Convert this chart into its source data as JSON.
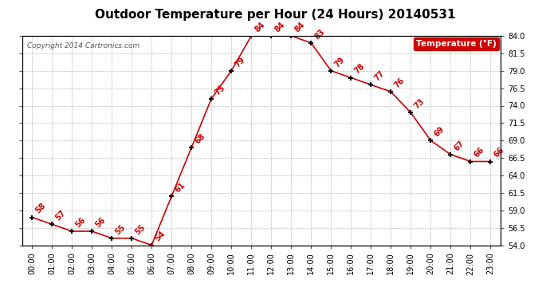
{
  "title": "Outdoor Temperature per Hour (24 Hours) 20140531",
  "copyright_text": "Copyright 2014 Cartronics.com",
  "legend_label": "Temperature (°F)",
  "hours": [
    0,
    1,
    2,
    3,
    4,
    5,
    6,
    7,
    8,
    9,
    10,
    11,
    12,
    13,
    14,
    15,
    16,
    17,
    18,
    19,
    20,
    21,
    22,
    23
  ],
  "temps": [
    58,
    57,
    56,
    56,
    55,
    55,
    54,
    61,
    68,
    75,
    79,
    84,
    84,
    84,
    83,
    79,
    78,
    77,
    76,
    73,
    69,
    67,
    66,
    66
  ],
  "ylim_min": 54.0,
  "ylim_max": 84.0,
  "yticks": [
    54.0,
    56.5,
    59.0,
    61.5,
    64.0,
    66.5,
    69.0,
    71.5,
    74.0,
    76.5,
    79.0,
    81.5,
    84.0
  ],
  "line_color": "#cc0000",
  "marker_color": "#000000",
  "bg_color": "#ffffff",
  "grid_color": "#bbbbbb",
  "title_fontsize": 11,
  "tick_fontsize": 7,
  "annotation_fontsize": 7,
  "legend_bg": "#cc0000",
  "legend_fg": "#ffffff",
  "legend_fontsize": 7.5,
  "copyright_fontsize": 6.5
}
